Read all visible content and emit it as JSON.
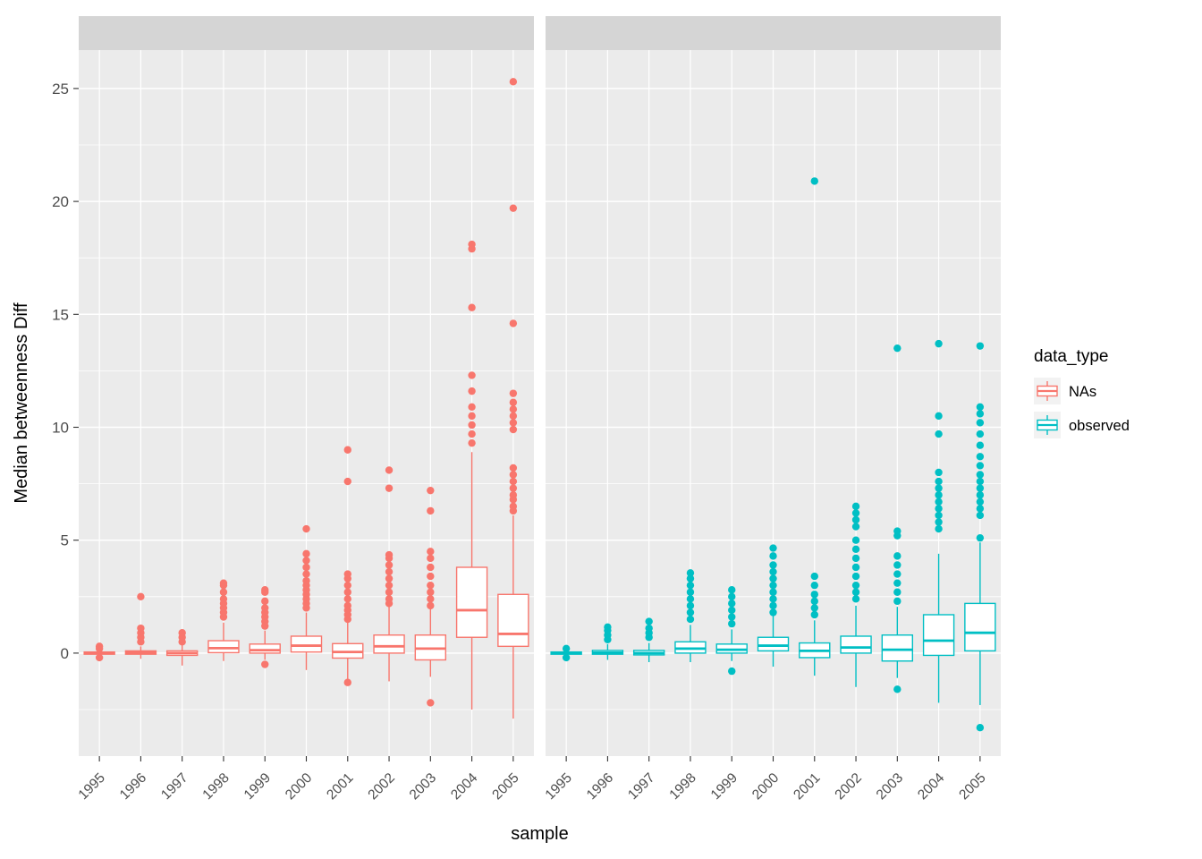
{
  "style": {
    "na_color": "#F8766D",
    "observed_color": "#00BFC4",
    "panel_bg": "#EBEBEB",
    "strip_bg": "#D5D5D5",
    "grid_color": "#FFFFFF",
    "tick_text_color": "#4D4D4D",
    "text_color": "#000000",
    "legend_key_bg": "#F2F2F2"
  },
  "chart_data": {
    "type": "boxplot",
    "title": "",
    "xlabel": "sample",
    "ylabel": "Median betweenness Diff",
    "legend_title": "data_type",
    "legend_position": "right",
    "grid": true,
    "categories": [
      "1995",
      "1996",
      "1997",
      "1998",
      "1999",
      "2000",
      "2001",
      "2002",
      "2003",
      "2004",
      "2005"
    ],
    "y_ticks": [
      0,
      5,
      10,
      15,
      20,
      25
    ],
    "ylim": [
      -4.56,
      26.7
    ],
    "legend": {
      "title": "data_type",
      "entries": [
        {
          "label": "NAs",
          "color": "#F8766D"
        },
        {
          "label": "observed",
          "color": "#00BFC4"
        }
      ]
    },
    "facets": [
      {
        "label": "NAs",
        "color": "#F8766D",
        "boxes": [
          {
            "category": "1995",
            "low": -0.1,
            "q1": -0.05,
            "med": 0,
            "q3": 0.05,
            "high": 0.1,
            "outliers": [
              0.2,
              0.3,
              -0.2
            ]
          },
          {
            "category": "1996",
            "low": -0.25,
            "q1": -0.05,
            "med": 0.02,
            "q3": 0.1,
            "high": 0.3,
            "outliers": [
              0.5,
              0.7,
              0.9,
              1.1,
              2.5
            ]
          },
          {
            "category": "1997",
            "low": -0.55,
            "q1": -0.1,
            "med": 0,
            "q3": 0.1,
            "high": 0.35,
            "outliers": [
              0.5,
              0.7,
              0.9
            ]
          },
          {
            "category": "1998",
            "low": -0.35,
            "q1": 0.02,
            "med": 0.22,
            "q3": 0.55,
            "high": 1.35,
            "outliers": [
              1.6,
              1.8,
              2.0,
              2.2,
              2.4,
              2.7,
              3.0,
              3.1
            ]
          },
          {
            "category": "1999",
            "low": -0.3,
            "q1": 0,
            "med": 0.13,
            "q3": 0.4,
            "high": 1.0,
            "outliers": [
              1.2,
              1.4,
              1.6,
              1.8,
              2.0,
              2.3,
              2.7,
              2.8,
              -0.5
            ]
          },
          {
            "category": "2000",
            "low": -0.75,
            "q1": 0.05,
            "med": 0.33,
            "q3": 0.75,
            "high": 1.8,
            "outliers": [
              2.0,
              2.2,
              2.4,
              2.6,
              2.8,
              3.0,
              3.2,
              3.5,
              3.8,
              4.1,
              4.4,
              5.5
            ]
          },
          {
            "category": "2001",
            "low": -1.15,
            "q1": -0.22,
            "med": 0.05,
            "q3": 0.42,
            "high": 1.35,
            "outliers": [
              1.5,
              1.7,
              1.9,
              2.1,
              2.4,
              2.7,
              3.0,
              3.3,
              3.5,
              7.6,
              9.0,
              -1.3
            ]
          },
          {
            "category": "2002",
            "low": -1.25,
            "q1": 0,
            "med": 0.3,
            "q3": 0.8,
            "high": 2.05,
            "outliers": [
              2.2,
              2.4,
              2.7,
              3.0,
              3.3,
              3.6,
              3.9,
              4.2,
              4.35,
              7.3,
              8.1
            ]
          },
          {
            "category": "2003",
            "low": -1.05,
            "q1": -0.3,
            "med": 0.2,
            "q3": 0.8,
            "high": 1.95,
            "outliers": [
              2.1,
              2.4,
              2.7,
              3.0,
              3.4,
              3.8,
              4.2,
              4.5,
              6.3,
              7.2,
              -2.2
            ]
          },
          {
            "category": "2004",
            "low": -2.5,
            "q1": 0.7,
            "med": 1.9,
            "q3": 3.8,
            "high": 8.9,
            "outliers": [
              9.3,
              9.7,
              10.1,
              10.5,
              10.9,
              11.6,
              12.3,
              15.3,
              17.9,
              18.1
            ]
          },
          {
            "category": "2005",
            "low": -2.9,
            "q1": 0.3,
            "med": 0.85,
            "q3": 2.6,
            "high": 6.1,
            "outliers": [
              6.3,
              6.5,
              6.8,
              7.0,
              7.3,
              7.6,
              7.9,
              8.2,
              9.9,
              10.2,
              10.5,
              10.8,
              11.1,
              11.5,
              14.6,
              19.7,
              25.3
            ]
          }
        ]
      },
      {
        "label": "observed",
        "color": "#00BFC4",
        "boxes": [
          {
            "category": "1995",
            "low": -0.12,
            "q1": -0.05,
            "med": 0,
            "q3": 0.05,
            "high": 0.12,
            "outliers": [
              0.2,
              -0.2
            ]
          },
          {
            "category": "1996",
            "low": -0.3,
            "q1": -0.05,
            "med": 0.02,
            "q3": 0.12,
            "high": 0.4,
            "outliers": [
              0.6,
              0.8,
              1.0,
              1.15
            ]
          },
          {
            "category": "1997",
            "low": -0.4,
            "q1": -0.08,
            "med": 0,
            "q3": 0.12,
            "high": 0.45,
            "outliers": [
              0.7,
              0.9,
              1.1,
              1.4
            ]
          },
          {
            "category": "1998",
            "low": -0.4,
            "q1": 0,
            "med": 0.2,
            "q3": 0.5,
            "high": 1.25,
            "outliers": [
              1.5,
              1.8,
              2.1,
              2.4,
              2.7,
              3.0,
              3.3,
              3.55
            ]
          },
          {
            "category": "1999",
            "low": -0.35,
            "q1": 0,
            "med": 0.15,
            "q3": 0.4,
            "high": 1.05,
            "outliers": [
              1.3,
              1.6,
              1.9,
              2.2,
              2.5,
              2.8,
              -0.8
            ]
          },
          {
            "category": "2000",
            "low": -0.6,
            "q1": 0.1,
            "med": 0.33,
            "q3": 0.7,
            "high": 1.65,
            "outliers": [
              1.8,
              2.1,
              2.4,
              2.7,
              3.0,
              3.3,
              3.6,
              3.9,
              4.3,
              4.65
            ]
          },
          {
            "category": "2001",
            "low": -1.0,
            "q1": -0.2,
            "med": 0.1,
            "q3": 0.45,
            "high": 1.45,
            "outliers": [
              1.7,
              2.0,
              2.3,
              2.6,
              3.0,
              3.4,
              20.9
            ]
          },
          {
            "category": "2002",
            "low": -1.5,
            "q1": 0,
            "med": 0.25,
            "q3": 0.75,
            "high": 2.1,
            "outliers": [
              2.4,
              2.7,
              3.0,
              3.4,
              3.8,
              4.2,
              4.6,
              5.0,
              5.6,
              5.9,
              6.2,
              6.5
            ]
          },
          {
            "category": "2003",
            "low": -1.1,
            "q1": -0.35,
            "med": 0.15,
            "q3": 0.8,
            "high": 2.05,
            "outliers": [
              2.3,
              2.7,
              3.1,
              3.5,
              3.9,
              4.3,
              5.2,
              5.4,
              13.5,
              -1.6
            ]
          },
          {
            "category": "2004",
            "low": -2.2,
            "q1": -0.1,
            "med": 0.55,
            "q3": 1.7,
            "high": 4.4,
            "outliers": [
              5.5,
              5.8,
              6.1,
              6.4,
              6.7,
              7.0,
              7.3,
              7.6,
              8.0,
              9.7,
              10.5,
              13.7
            ]
          },
          {
            "category": "2005",
            "low": -2.3,
            "q1": 0.1,
            "med": 0.9,
            "q3": 2.2,
            "high": 4.9,
            "outliers": [
              5.1,
              6.1,
              6.4,
              6.7,
              7.0,
              7.3,
              7.6,
              7.9,
              8.3,
              8.7,
              9.2,
              9.7,
              10.2,
              10.6,
              10.9,
              13.6,
              -3.3
            ]
          }
        ]
      }
    ]
  }
}
